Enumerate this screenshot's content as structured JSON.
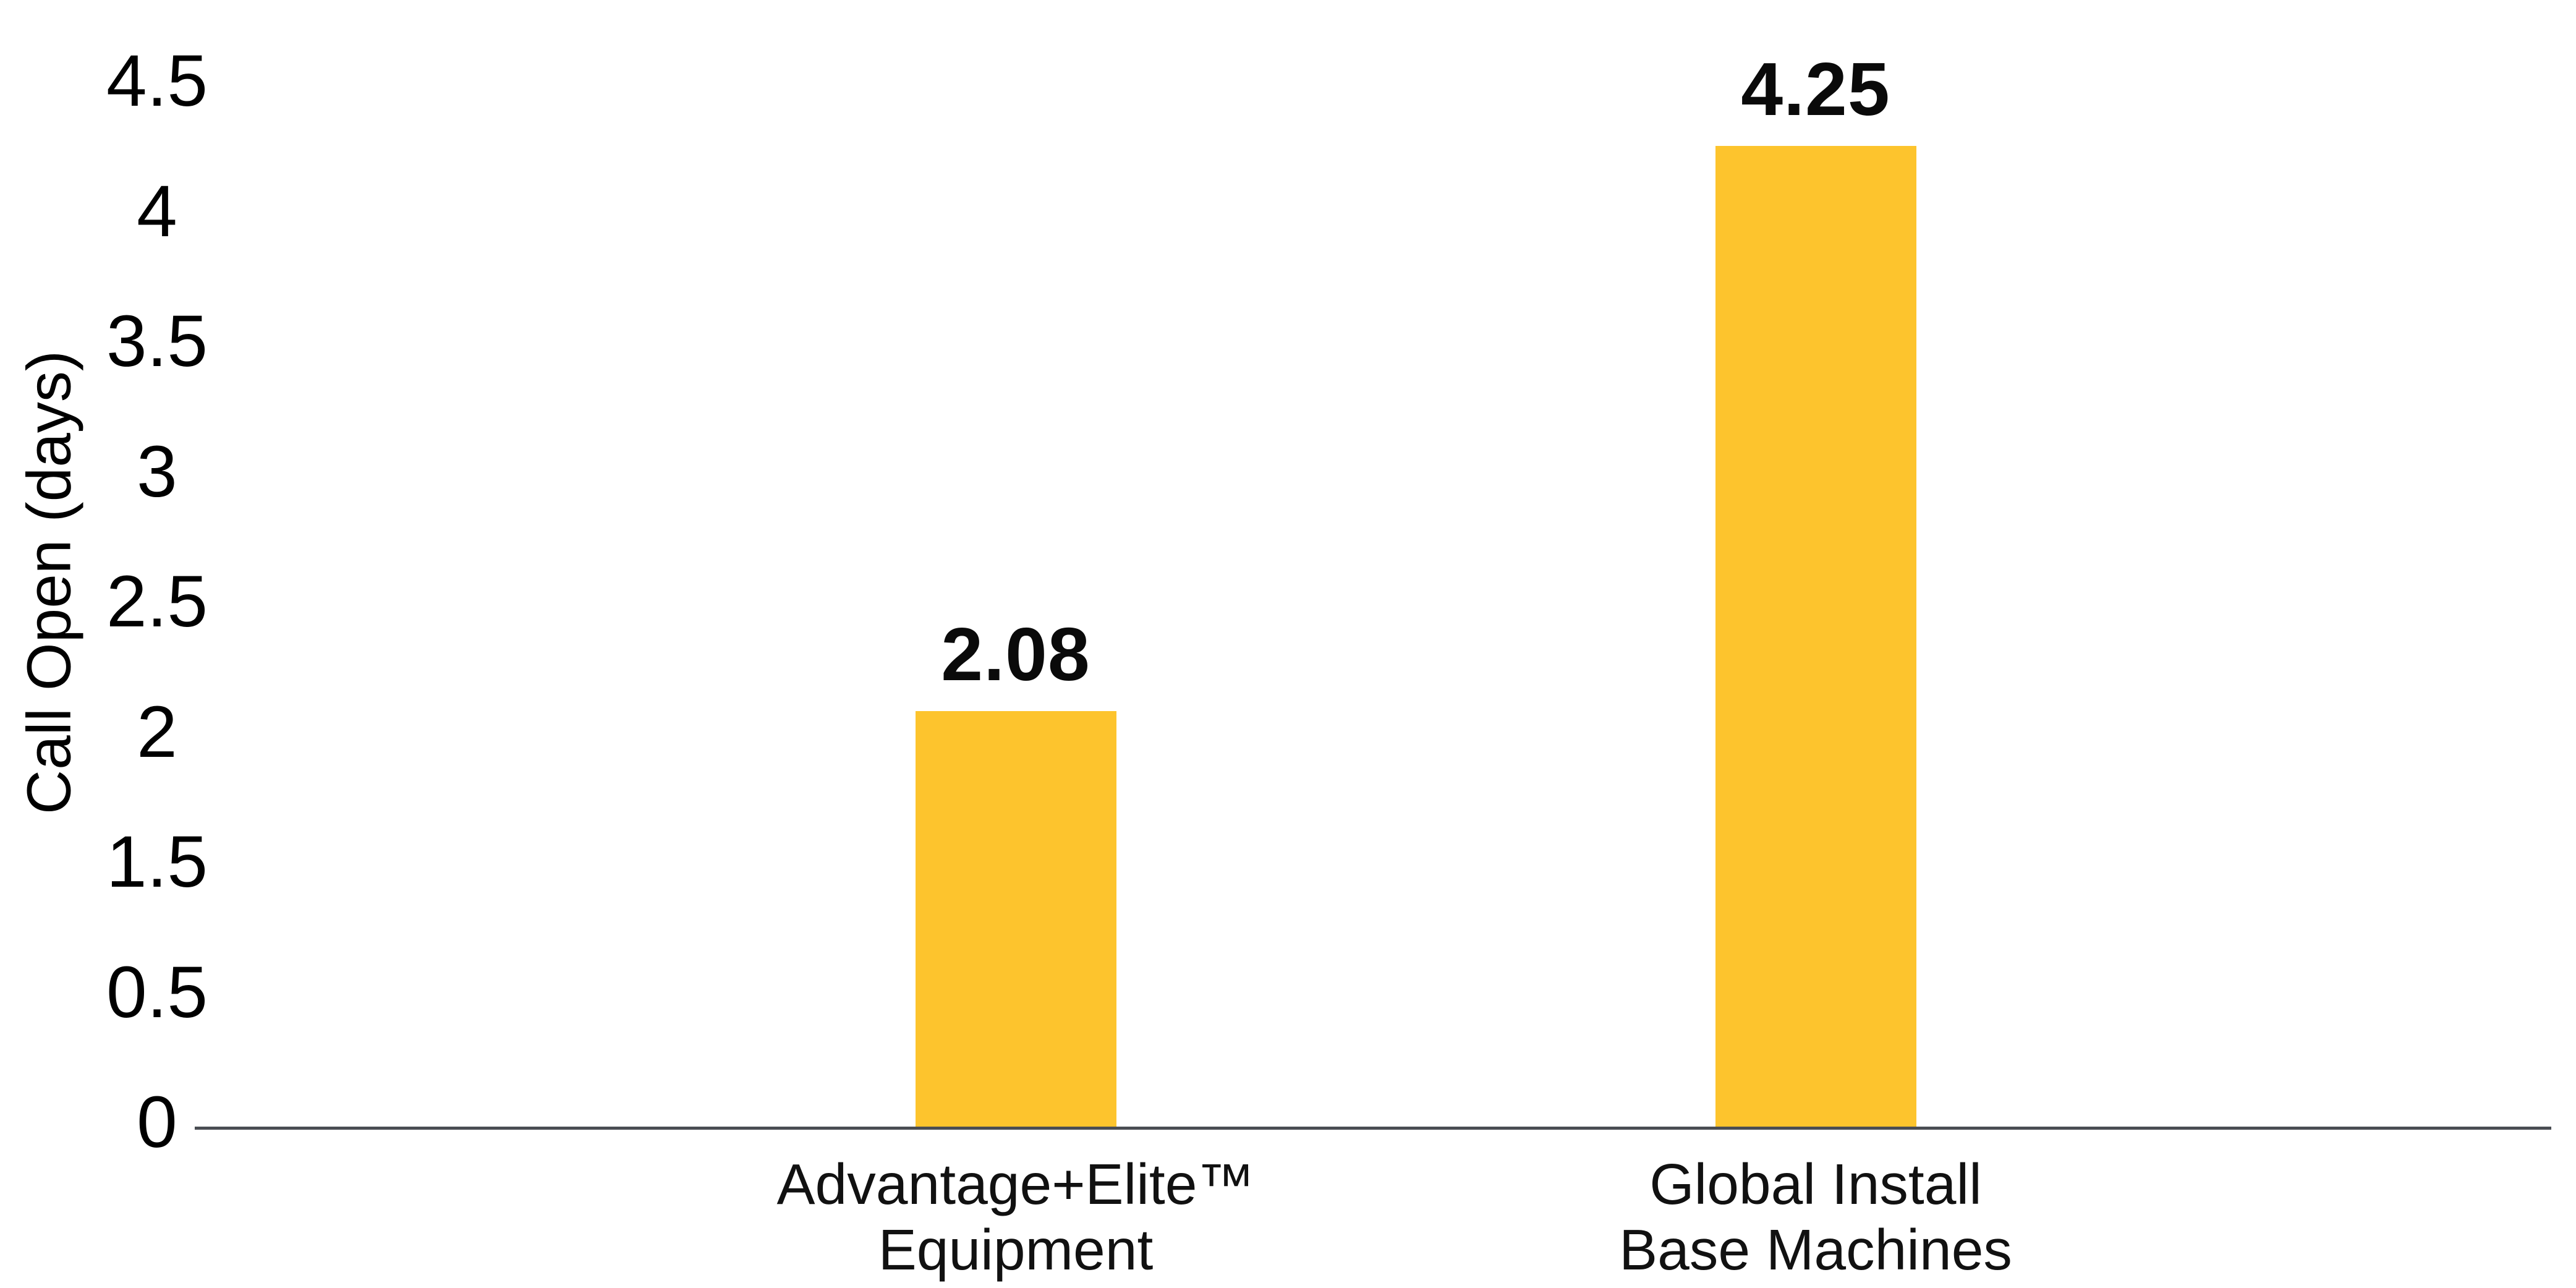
{
  "chart_data": {
    "type": "bar",
    "title": "",
    "ylabel": "Call Open (days)",
    "xlabel": "",
    "categories": [
      "Advantage+Elite™ Equipment",
      "Global Install Base Machines"
    ],
    "category_lines": [
      [
        "Advantage+Elite™",
        "Equipment"
      ],
      [
        "Global Install",
        "Base Machines"
      ]
    ],
    "values": [
      2.08,
      4.25
    ],
    "value_labels": [
      "2.08",
      "4.25"
    ],
    "y_tick_labels": [
      "4.5",
      "4",
      "3.5",
      "3",
      "2.5",
      "2",
      "1.5",
      "0.5",
      "0"
    ],
    "ylim": [
      0,
      4.5
    ],
    "grid": false,
    "legend": false,
    "bar_color": "#FDC42D",
    "axis_line_color": "#4A4D53",
    "text_color": "#000000"
  }
}
